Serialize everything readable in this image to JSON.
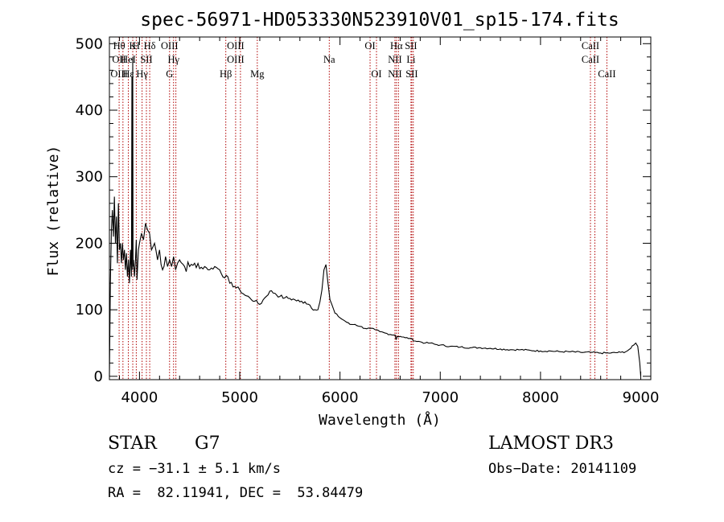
{
  "chart_data": {
    "type": "line",
    "title": "spec-56971-HD053330N523910V01_sp15-174.fits",
    "xlabel": "Wavelength (Å)",
    "ylabel": "Flux (relative)",
    "xlim": [
      3700,
      9100
    ],
    "ylim": [
      -5,
      510
    ],
    "xticks": [
      4000,
      5000,
      6000,
      7000,
      8000,
      9000
    ],
    "yticks": [
      0,
      100,
      200,
      300,
      400,
      500
    ],
    "series": [
      {
        "name": "flux",
        "x": [
          3700,
          3710,
          3720,
          3730,
          3740,
          3750,
          3760,
          3770,
          3780,
          3790,
          3800,
          3810,
          3820,
          3830,
          3840,
          3850,
          3860,
          3870,
          3880,
          3890,
          3900,
          3910,
          3920,
          3925,
          3930,
          3933,
          3936,
          3940,
          3950,
          3960,
          3968,
          3975,
          3990,
          4000,
          4020,
          4040,
          4060,
          4080,
          4100,
          4120,
          4150,
          4180,
          4200,
          4230,
          4260,
          4280,
          4300,
          4320,
          4340,
          4360,
          4380,
          4400,
          4450,
          4500,
          4550,
          4600,
          4650,
          4700,
          4750,
          4800,
          4850,
          4880,
          4900,
          4950,
          5000,
          5050,
          5100,
          5150,
          5200,
          5250,
          5300,
          5350,
          5400,
          5450,
          5500,
          5550,
          5600,
          5650,
          5700,
          5750,
          5780,
          5800,
          5820,
          5840,
          5860,
          5880,
          5900,
          5950,
          6000,
          6050,
          6100,
          6150,
          6200,
          6250,
          6300,
          6350,
          6400,
          6450,
          6500,
          6550,
          6560,
          6570,
          6600,
          6650,
          6700,
          6750,
          6800,
          6850,
          6900,
          6950,
          7000,
          7100,
          7200,
          7300,
          7400,
          7500,
          7600,
          7700,
          7800,
          7900,
          8000,
          8100,
          8200,
          8300,
          8400,
          8500,
          8600,
          8700,
          8800,
          8850,
          8900,
          8930,
          8950,
          8970,
          8990,
          9000
        ],
        "y": [
          0,
          140,
          220,
          250,
          210,
          270,
          200,
          240,
          170,
          260,
          190,
          200,
          170,
          200,
          175,
          190,
          160,
          185,
          150,
          175,
          140,
          190,
          150,
          450,
          160,
          480,
          165,
          175,
          150,
          175,
          205,
          145,
          190,
          200,
          215,
          205,
          230,
          220,
          215,
          190,
          200,
          175,
          190,
          160,
          180,
          165,
          175,
          165,
          180,
          160,
          170,
          175,
          165,
          165,
          170,
          162,
          165,
          160,
          165,
          160,
          148,
          150,
          140,
          135,
          130,
          122,
          118,
          113,
          108,
          118,
          128,
          125,
          120,
          118,
          117,
          115,
          112,
          112,
          107,
          100,
          100,
          112,
          130,
          160,
          168,
          140,
          115,
          95,
          88,
          83,
          78,
          78,
          75,
          72,
          72,
          70,
          67,
          65,
          63,
          62,
          55,
          60,
          60,
          58,
          57,
          53,
          52,
          50,
          50,
          48,
          47,
          45,
          44,
          43,
          43,
          42,
          41,
          40,
          40,
          39,
          38,
          38,
          37,
          37,
          36,
          36,
          35,
          35,
          36,
          37,
          42,
          47,
          50,
          45,
          20,
          0
        ]
      }
    ],
    "lines": [
      {
        "x": 3797,
        "labels": [
          "Hθ",
          "OII",
          "OIII"
        ]
      },
      {
        "x": 3835,
        "labels": [
          "",
          "",
          ""
        ]
      },
      {
        "x": 3889,
        "labels": [
          "",
          "HeI",
          "Hε"
        ]
      },
      {
        "x": 3933,
        "labels": [
          "K",
          "",
          ""
        ]
      },
      {
        "x": 3968,
        "labels": [
          "H",
          "",
          ""
        ]
      },
      {
        "x": 4026,
        "labels": [
          "",
          "",
          "Hγ"
        ]
      },
      {
        "x": 4069,
        "labels": [
          "",
          "SII",
          ""
        ]
      },
      {
        "x": 4102,
        "labels": [
          "Hδ",
          "",
          ""
        ]
      },
      {
        "x": 4300,
        "labels": [
          "OIII",
          "",
          "G"
        ]
      },
      {
        "x": 4340,
        "labels": [
          "",
          "Hγ",
          ""
        ]
      },
      {
        "x": 4363,
        "labels": [
          "",
          "",
          ""
        ]
      },
      {
        "x": 4861,
        "labels": [
          "",
          "",
          "Hβ"
        ]
      },
      {
        "x": 4959,
        "labels": [
          "OIII",
          "OIII",
          ""
        ]
      },
      {
        "x": 5007,
        "labels": [
          "",
          "",
          ""
        ]
      },
      {
        "x": 5175,
        "labels": [
          "",
          "",
          "Mg"
        ]
      },
      {
        "x": 5893,
        "labels": [
          "",
          "Na",
          ""
        ]
      },
      {
        "x": 6300,
        "labels": [
          "OI",
          "",
          ""
        ]
      },
      {
        "x": 6364,
        "labels": [
          "",
          "",
          "OI"
        ]
      },
      {
        "x": 6548,
        "labels": [
          "",
          "NII",
          "NII"
        ]
      },
      {
        "x": 6563,
        "labels": [
          "Hα",
          "",
          ""
        ]
      },
      {
        "x": 6583,
        "labels": [
          "",
          "",
          ""
        ]
      },
      {
        "x": 6708,
        "labels": [
          "SII",
          "Li",
          ""
        ]
      },
      {
        "x": 6716,
        "labels": [
          "",
          "",
          "SII"
        ]
      },
      {
        "x": 6731,
        "labels": [
          "",
          "",
          ""
        ]
      },
      {
        "x": 8498,
        "labels": [
          "CaII",
          "CaII",
          ""
        ]
      },
      {
        "x": 8542,
        "labels": [
          "",
          "",
          ""
        ]
      },
      {
        "x": 8662,
        "labels": [
          "",
          "",
          "CaII"
        ]
      }
    ]
  },
  "info": {
    "object": "STAR",
    "subclass": "G7",
    "survey": "LAMOST DR3",
    "cz": "cz = −31.1 ± 5.1 km/s",
    "obs_date": "Obs−Date: 20141109",
    "coords": "RA =  82.11941, DEC =  53.84479"
  }
}
